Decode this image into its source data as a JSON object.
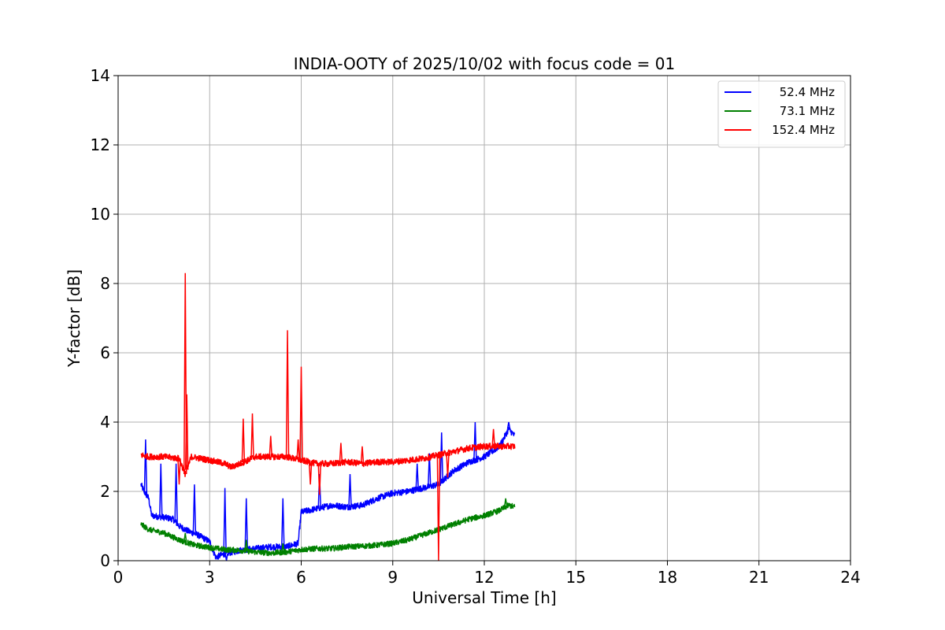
{
  "chart_data": {
    "type": "line",
    "title": "INDIA-OOTY of 2025/10/02 with focus code = 01",
    "xlabel": "Universal Time [h]",
    "ylabel": "Y-factor [dB]",
    "xlim": [
      0,
      24
    ],
    "ylim": [
      0,
      14
    ],
    "xticks": [
      0,
      3,
      6,
      9,
      12,
      15,
      18,
      21,
      24
    ],
    "yticks": [
      0,
      2,
      4,
      6,
      8,
      10,
      12,
      14
    ],
    "grid": true,
    "legend_position": "top-right",
    "series": [
      {
        "name": "52.4 MHz",
        "color": "#0000ff",
        "points": [
          [
            0.75,
            2.2
          ],
          [
            0.85,
            2.0
          ],
          [
            1.0,
            1.8
          ],
          [
            1.1,
            1.3
          ],
          [
            1.5,
            1.25
          ],
          [
            1.8,
            1.2
          ],
          [
            2.0,
            1.0
          ],
          [
            2.3,
            0.85
          ],
          [
            2.6,
            0.75
          ],
          [
            3.0,
            0.55
          ],
          [
            3.2,
            0.1
          ],
          [
            3.5,
            0.2
          ],
          [
            4.0,
            0.3
          ],
          [
            4.5,
            0.35
          ],
          [
            5.0,
            0.4
          ],
          [
            5.5,
            0.4
          ],
          [
            5.9,
            0.5
          ],
          [
            6.0,
            1.4
          ],
          [
            6.5,
            1.5
          ],
          [
            7.0,
            1.6
          ],
          [
            7.5,
            1.55
          ],
          [
            8.0,
            1.6
          ],
          [
            8.5,
            1.8
          ],
          [
            9.0,
            1.95
          ],
          [
            9.5,
            2.0
          ],
          [
            10.0,
            2.1
          ],
          [
            10.5,
            2.2
          ],
          [
            11.0,
            2.6
          ],
          [
            11.5,
            2.85
          ],
          [
            12.0,
            3.0
          ],
          [
            12.5,
            3.3
          ],
          [
            12.8,
            3.8
          ],
          [
            13.0,
            3.6
          ]
        ],
        "spikes": [
          [
            0.9,
            3.5
          ],
          [
            1.4,
            2.8
          ],
          [
            1.9,
            2.8
          ],
          [
            2.5,
            2.2
          ],
          [
            3.5,
            2.1
          ],
          [
            3.55,
            0.0
          ],
          [
            4.2,
            1.8
          ],
          [
            5.4,
            1.8
          ],
          [
            6.6,
            2.5
          ],
          [
            7.6,
            2.5
          ],
          [
            9.8,
            2.8
          ],
          [
            10.2,
            3.1
          ],
          [
            10.6,
            3.7
          ],
          [
            11.7,
            4.0
          ],
          [
            12.8,
            4.0
          ]
        ]
      },
      {
        "name": "73.1 MHz",
        "color": "#008000",
        "points": [
          [
            0.75,
            1.05
          ],
          [
            1.0,
            0.9
          ],
          [
            1.5,
            0.8
          ],
          [
            2.0,
            0.6
          ],
          [
            2.5,
            0.45
          ],
          [
            3.0,
            0.38
          ],
          [
            3.5,
            0.32
          ],
          [
            4.0,
            0.3
          ],
          [
            4.5,
            0.25
          ],
          [
            5.0,
            0.22
          ],
          [
            5.5,
            0.25
          ],
          [
            6.0,
            0.32
          ],
          [
            6.5,
            0.35
          ],
          [
            7.0,
            0.35
          ],
          [
            7.5,
            0.4
          ],
          [
            8.0,
            0.42
          ],
          [
            8.5,
            0.45
          ],
          [
            9.0,
            0.5
          ],
          [
            9.5,
            0.6
          ],
          [
            10.0,
            0.75
          ],
          [
            10.5,
            0.9
          ],
          [
            11.0,
            1.05
          ],
          [
            11.5,
            1.2
          ],
          [
            12.0,
            1.3
          ],
          [
            12.5,
            1.45
          ],
          [
            12.8,
            1.6
          ],
          [
            13.0,
            1.55
          ]
        ],
        "spikes": [
          [
            2.2,
            0.8
          ],
          [
            4.2,
            0.6
          ],
          [
            5.4,
            0.5
          ],
          [
            12.7,
            1.8
          ]
        ]
      },
      {
        "name": "152.4 MHz",
        "color": "#ff0000",
        "points": [
          [
            0.75,
            3.05
          ],
          [
            1.0,
            3.0
          ],
          [
            1.5,
            3.0
          ],
          [
            2.0,
            2.95
          ],
          [
            2.2,
            2.5
          ],
          [
            2.4,
            3.0
          ],
          [
            3.0,
            2.9
          ],
          [
            3.5,
            2.8
          ],
          [
            3.7,
            2.7
          ],
          [
            4.0,
            2.8
          ],
          [
            4.5,
            3.0
          ],
          [
            5.0,
            3.0
          ],
          [
            5.5,
            3.0
          ],
          [
            6.0,
            2.9
          ],
          [
            6.5,
            2.8
          ],
          [
            7.0,
            2.8
          ],
          [
            7.5,
            2.85
          ],
          [
            8.0,
            2.8
          ],
          [
            8.5,
            2.85
          ],
          [
            9.0,
            2.85
          ],
          [
            9.5,
            2.9
          ],
          [
            10.0,
            2.95
          ],
          [
            10.5,
            3.05
          ],
          [
            11.0,
            3.15
          ],
          [
            11.5,
            3.25
          ],
          [
            12.0,
            3.3
          ],
          [
            12.5,
            3.3
          ],
          [
            13.0,
            3.3
          ]
        ],
        "spikes": [
          [
            2.2,
            8.3
          ],
          [
            2.25,
            4.8
          ],
          [
            2.0,
            2.2
          ],
          [
            4.1,
            4.1
          ],
          [
            4.4,
            4.25
          ],
          [
            5.0,
            3.6
          ],
          [
            5.55,
            6.65
          ],
          [
            5.9,
            3.5
          ],
          [
            6.0,
            5.6
          ],
          [
            6.3,
            2.2
          ],
          [
            6.6,
            1.9
          ],
          [
            7.3,
            3.4
          ],
          [
            8.0,
            3.3
          ],
          [
            10.5,
            0.0
          ],
          [
            10.8,
            2.4
          ],
          [
            12.3,
            3.8
          ]
        ]
      }
    ]
  }
}
